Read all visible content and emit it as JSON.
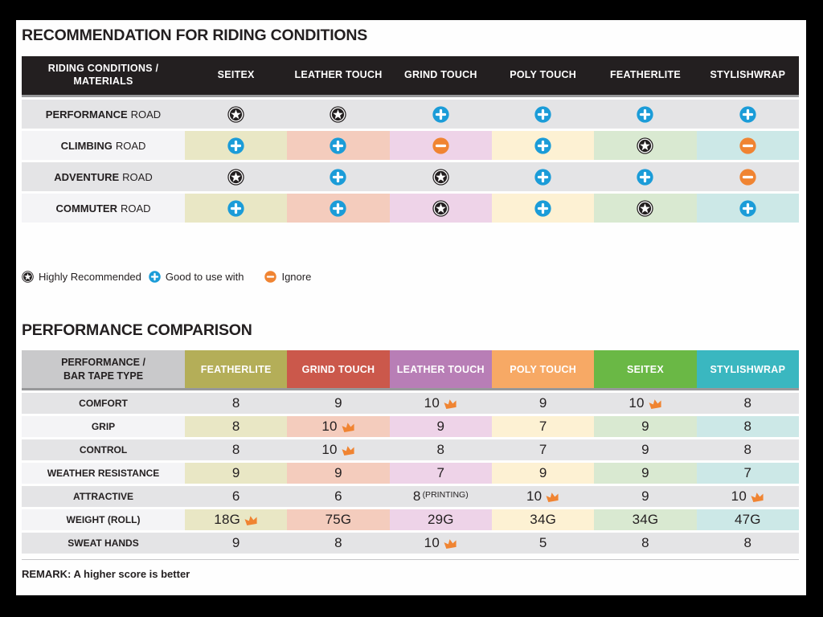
{
  "sections": {
    "riding_title": "RECOMMENDATION FOR RIDING CONDITIONS",
    "performance_title": "PERFORMANCE COMPARISON",
    "remark": "REMARK: A higher score is better"
  },
  "colors": {
    "ink": "#231f20",
    "plus_blue": "#1b9cd8",
    "minus_orange": "#f08432",
    "crown_orange": "#f08432",
    "header_black": "#231f20"
  },
  "legend": [
    {
      "icon": "star",
      "label": "Highly Recommended"
    },
    {
      "icon": "plus",
      "label": "Good to use with"
    },
    {
      "icon": "minus",
      "label": "Ignore"
    }
  ],
  "riding_table": {
    "header_label_line1": "RIDING CONDITIONS /",
    "header_label_line2": "MATERIALS",
    "columns": [
      "SEITEX",
      "LEATHER TOUCH",
      "GRIND TOUCH",
      "POLY TOUCH",
      "FEATHERLITE",
      "STYLISHWRAP"
    ],
    "rows": [
      {
        "highlight": "PERFORMANCE",
        "rest": "ROAD",
        "icons": [
          "star",
          "star",
          "plus",
          "plus",
          "plus",
          "plus"
        ]
      },
      {
        "highlight": "CLIMBING",
        "rest": "ROAD",
        "icons": [
          "plus",
          "plus",
          "minus",
          "plus",
          "star",
          "minus"
        ]
      },
      {
        "highlight": "ADVENTURE",
        "rest": "ROAD",
        "icons": [
          "star",
          "plus",
          "star",
          "plus",
          "plus",
          "minus"
        ]
      },
      {
        "highlight": "COMMUTER",
        "rest": "ROAD",
        "icons": [
          "plus",
          "plus",
          "star",
          "plus",
          "star",
          "plus"
        ]
      }
    ]
  },
  "performance_table": {
    "header_label_line1": "PERFORMANCE /",
    "header_label_line2": "BAR TAPE TYPE",
    "columns": [
      {
        "label": "FEATHERLITE",
        "color": "#b4ae58"
      },
      {
        "label": "GRIND TOUCH",
        "color": "#cb584b"
      },
      {
        "label": "LEATHER TOUCH",
        "color": "#b87eb6"
      },
      {
        "label": "POLY TOUCH",
        "color": "#f7a965"
      },
      {
        "label": "SEITEX",
        "color": "#6ab845"
      },
      {
        "label": "STYLISHWRAP",
        "color": "#3ab7c0"
      }
    ],
    "rows": [
      {
        "label": "COMFORT",
        "values": [
          {
            "v": "8"
          },
          {
            "v": "9"
          },
          {
            "v": "10",
            "crown": true
          },
          {
            "v": "9"
          },
          {
            "v": "10",
            "crown": true
          },
          {
            "v": "8"
          }
        ]
      },
      {
        "label": "GRIP",
        "values": [
          {
            "v": "8"
          },
          {
            "v": "10",
            "crown": true
          },
          {
            "v": "9"
          },
          {
            "v": "7"
          },
          {
            "v": "9"
          },
          {
            "v": "8"
          }
        ]
      },
      {
        "label": "CONTROL",
        "values": [
          {
            "v": "8"
          },
          {
            "v": "10",
            "crown": true
          },
          {
            "v": "8"
          },
          {
            "v": "7"
          },
          {
            "v": "9"
          },
          {
            "v": "8"
          }
        ]
      },
      {
        "label": "WEATHER RESISTANCE",
        "values": [
          {
            "v": "9"
          },
          {
            "v": "9"
          },
          {
            "v": "7"
          },
          {
            "v": "9"
          },
          {
            "v": "9"
          },
          {
            "v": "7"
          }
        ]
      },
      {
        "label": "ATTRACTIVE",
        "values": [
          {
            "v": "6"
          },
          {
            "v": "6"
          },
          {
            "v": "8",
            "note": "(PRINTING)"
          },
          {
            "v": "10",
            "crown": true
          },
          {
            "v": "9"
          },
          {
            "v": "10",
            "crown": true
          }
        ]
      },
      {
        "label": "WEIGHT (ROLL)",
        "values": [
          {
            "v": "18G",
            "crown": true
          },
          {
            "v": "75G"
          },
          {
            "v": "29G"
          },
          {
            "v": "34G"
          },
          {
            "v": "34G"
          },
          {
            "v": "47G"
          }
        ]
      },
      {
        "label": "SWEAT HANDS",
        "values": [
          {
            "v": "9"
          },
          {
            "v": "8"
          },
          {
            "v": "10",
            "crown": true
          },
          {
            "v": "5"
          },
          {
            "v": "8"
          },
          {
            "v": "8"
          }
        ]
      }
    ]
  }
}
